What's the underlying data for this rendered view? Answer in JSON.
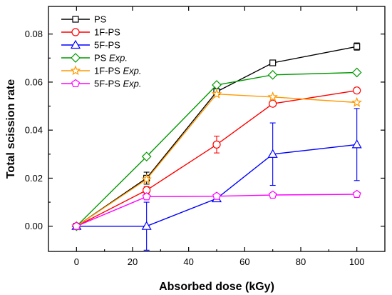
{
  "chart_data": {
    "type": "line",
    "xlabel": "Absorbed dose (kGy)",
    "ylabel": "Total scission rate",
    "xlim": [
      -10,
      110
    ],
    "ylim": [
      -0.0105,
      0.0915
    ],
    "xticks": [
      "0",
      "20",
      "40",
      "60",
      "80",
      "100"
    ],
    "yticks": [
      "0.00",
      "0.02",
      "0.04",
      "0.06",
      "0.08"
    ],
    "grid": false,
    "legend_position": "top-left",
    "series": [
      {
        "name": "PS",
        "name_italic": "",
        "color": "#000000",
        "marker": "square",
        "x": [
          0,
          25,
          50,
          70,
          100
        ],
        "y": [
          0.0,
          0.02,
          0.056,
          0.068,
          0.0748
        ],
        "err": [
          0,
          0.0025,
          0.0012,
          0.0008,
          0.0015
        ]
      },
      {
        "name": "1F-PS",
        "name_italic": "",
        "color": "#ff0000",
        "marker": "circle",
        "x": [
          0,
          25,
          50,
          70,
          100
        ],
        "y": [
          0.0,
          0.015,
          0.034,
          0.051,
          0.0565
        ],
        "err": [
          0,
          0.0015,
          0.0035,
          0.0008,
          0.0008
        ]
      },
      {
        "name": "5F-PS",
        "name_italic": "",
        "color": "#0000ff",
        "marker": "triangle",
        "x": [
          0,
          25,
          50,
          70,
          100
        ],
        "y": [
          0.0,
          0.0,
          0.0115,
          0.03,
          0.034
        ],
        "err": [
          0,
          0.01,
          0.0008,
          0.013,
          0.015
        ]
      },
      {
        "name": "PS",
        "name_italic": "Exp.",
        "color": "#009900",
        "marker": "diamond",
        "x": [
          0,
          25,
          50,
          70,
          100
        ],
        "y": [
          0.0,
          0.029,
          0.0588,
          0.063,
          0.064
        ],
        "err": [
          0,
          0,
          0,
          0,
          0
        ]
      },
      {
        "name": "1F-PS",
        "name_italic": "Exp.",
        "color": "#ff9900",
        "marker": "star",
        "x": [
          0,
          25,
          50,
          70,
          100
        ],
        "y": [
          0.0,
          0.0195,
          0.055,
          0.0538,
          0.0515
        ],
        "err": [
          0,
          0,
          0,
          0,
          0
        ]
      },
      {
        "name": "5F-PS",
        "name_italic": "Exp.",
        "color": "#ff00ff",
        "marker": "pentagon",
        "x": [
          0,
          25,
          50,
          70,
          100
        ],
        "y": [
          0.0,
          0.0123,
          0.0125,
          0.013,
          0.0133
        ],
        "err": [
          0,
          0,
          0,
          0,
          0
        ]
      }
    ]
  }
}
